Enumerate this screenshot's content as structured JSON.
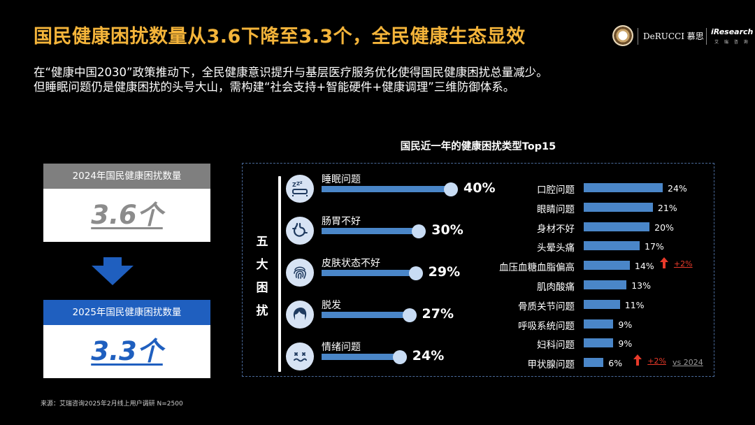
{
  "header": {
    "title": "国民健康困扰数量从3.6下降至3.3个，全民健康生态显效",
    "subtitle_line1": "在“健康中国2030”政策推动下，全民健康意识提升与基层医疗服务优化使得国民健康困扰总量减少。",
    "subtitle_line2": "但睡眠问题仍是健康困扰的头号大山，需构建“社会支持+智能硬件+健康调理”三维防御体系。"
  },
  "logos": {
    "derucci": "DeRUCCI 慕思",
    "iresearch": "iResearch",
    "iresearch_sub": "艾 瑞 咨 询"
  },
  "left_panel": {
    "box_2024": {
      "label": "2024年国民健康困扰数量",
      "value": "3.6个"
    },
    "box_2025": {
      "label": "2025年国民健康困扰数量",
      "value": "3.3个"
    },
    "arrow_icon": "down-arrow-icon"
  },
  "chart_data": {
    "type": "bar",
    "title": "国民近一年的健康困扰类型Top15",
    "group_label": [
      "五",
      "大",
      "困",
      "扰"
    ],
    "top5": [
      {
        "name": "睡眠问题",
        "value": 40,
        "label": "40%",
        "icon": "sleep-icon"
      },
      {
        "name": "肠胃不好",
        "value": 30,
        "label": "30%",
        "icon": "stomach-icon"
      },
      {
        "name": "皮肤状态不好",
        "value": 29,
        "label": "29%",
        "icon": "fingerprint-skin-icon"
      },
      {
        "name": "脱发",
        "value": 27,
        "label": "27%",
        "icon": "hair-icon"
      },
      {
        "name": "情绪问题",
        "value": 24,
        "label": "24%",
        "icon": "mood-icon"
      }
    ],
    "others": [
      {
        "name": "口腔问题",
        "value": 24,
        "label": "24%"
      },
      {
        "name": "眼睛问题",
        "value": 21,
        "label": "21%"
      },
      {
        "name": "身材不好",
        "value": 20,
        "label": "20%"
      },
      {
        "name": "头晕头痛",
        "value": 17,
        "label": "17%"
      },
      {
        "name": "血压血糖血脂偏高",
        "value": 14,
        "label": "14%",
        "delta": "+2%"
      },
      {
        "name": "肌肉酸痛",
        "value": 13,
        "label": "13%"
      },
      {
        "name": "骨质关节问题",
        "value": 11,
        "label": "11%"
      },
      {
        "name": "呼吸系统问题",
        "value": 9,
        "label": "9%"
      },
      {
        "name": "妇科问题",
        "value": 9,
        "label": "9%"
      },
      {
        "name": "甲状腺问题",
        "value": 6,
        "label": "6%",
        "delta": "+2%"
      }
    ],
    "comparison_label": "vs 2024",
    "colors": {
      "bar": "#4a86c8",
      "knob": "#c8dcf4",
      "delta": "#e83a2a",
      "title": "#f4b43a"
    }
  },
  "footer": {
    "source": "来源：艾瑞咨询2025年2月线上用户调研 N=2500"
  }
}
